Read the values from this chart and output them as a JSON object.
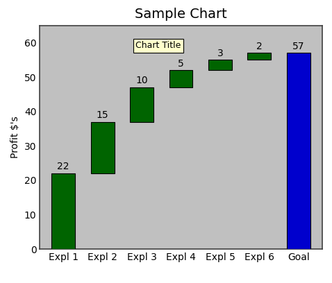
{
  "title": "Sample Chart",
  "ylabel": "Profit $'s",
  "categories": [
    "Expl 1",
    "Expl 2",
    "Expl 3",
    "Expl 4",
    "Expl 5",
    "Expl 6",
    "Goal"
  ],
  "values": [
    22,
    15,
    10,
    5,
    3,
    2,
    57
  ],
  "bottoms": [
    0,
    22,
    37,
    47,
    52,
    55,
    0
  ],
  "bar_types": [
    "green",
    "green",
    "green",
    "green",
    "green",
    "green",
    "blue"
  ],
  "bar_color_green": "#006400",
  "bar_color_blue": "#0000CD",
  "bar_edge_color": "#000000",
  "bg_color": "#C0C0C0",
  "outer_bg": "#FFFFFF",
  "plot_border_color": "#808080",
  "ylim": [
    0,
    65
  ],
  "yticks": [
    0,
    10,
    20,
    30,
    40,
    50,
    60
  ],
  "legend_label": "Chart Title",
  "title_fontsize": 14,
  "label_fontsize": 10,
  "tick_fontsize": 10,
  "value_fontsize": 10,
  "bar_width": 0.6
}
